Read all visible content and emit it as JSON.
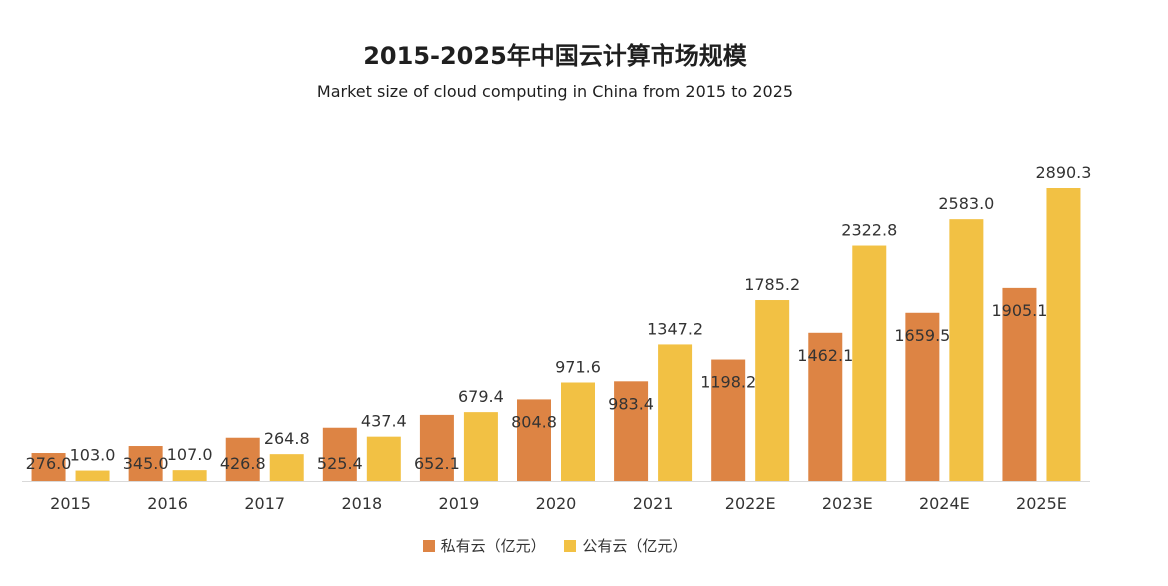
{
  "chart_data": {
    "type": "bar",
    "title": "2015-2025年中国云计算市场规模",
    "subtitle": "Market size of cloud computing in China from 2015 to 2025",
    "categories": [
      "2015",
      "2016",
      "2017",
      "2018",
      "2019",
      "2020",
      "2021",
      "2022E",
      "2023E",
      "2024E",
      "2025E"
    ],
    "series": [
      {
        "name": "私有云（亿元）",
        "color": "#DD8444",
        "values": [
          276.0,
          345.0,
          426.8,
          525.4,
          652.1,
          804.8,
          983.4,
          1198.2,
          1462.1,
          1659.5,
          1905.1
        ]
      },
      {
        "name": "公有云（亿元）",
        "color": "#F2C144",
        "values": [
          103.0,
          107.0,
          264.8,
          437.4,
          679.4,
          971.6,
          1347.2,
          1785.2,
          2322.8,
          2583.0,
          2890.3
        ]
      }
    ],
    "ylim": [
      0,
      3000
    ],
    "grid": false,
    "data_labels": true,
    "legend_position": "bottom"
  }
}
